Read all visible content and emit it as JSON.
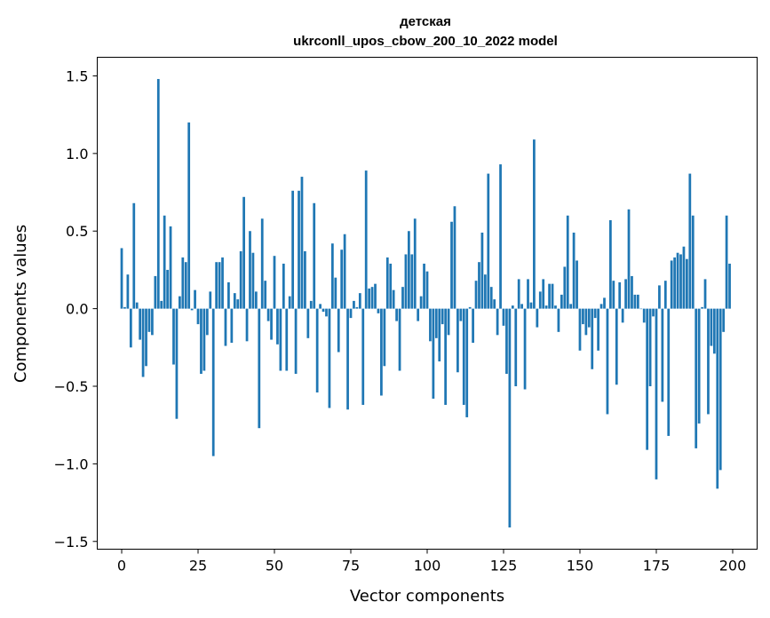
{
  "chart_data": {
    "type": "bar",
    "title_line1": "детская",
    "title_line2": "ukrconll_upos_cbow_200_10_2022 model",
    "xlabel": "Vector components",
    "ylabel": "Components values",
    "xlim": [
      -8,
      208
    ],
    "ylim": [
      -1.55,
      1.62
    ],
    "xticks": [
      0,
      25,
      50,
      75,
      100,
      125,
      150,
      175,
      200
    ],
    "xtick_labels": [
      "0",
      "25",
      "50",
      "75",
      "100",
      "125",
      "150",
      "175",
      "200"
    ],
    "yticks": [
      -1.5,
      -1.0,
      -0.5,
      0.0,
      0.5,
      1.0,
      1.5
    ],
    "ytick_labels": [
      "−1.5",
      "−1.0",
      "−0.5",
      "0.0",
      "0.5",
      "1.0",
      "1.5"
    ],
    "bar_color": "#1f77b4",
    "values": [
      0.39,
      0.01,
      0.22,
      -0.25,
      0.68,
      0.04,
      -0.2,
      -0.44,
      -0.37,
      -0.15,
      -0.17,
      0.21,
      1.48,
      0.05,
      0.6,
      0.25,
      0.53,
      -0.36,
      -0.71,
      0.08,
      0.33,
      0.3,
      1.2,
      -0.01,
      0.12,
      -0.1,
      -0.42,
      -0.4,
      -0.17,
      0.11,
      -0.95,
      0.3,
      0.3,
      0.33,
      -0.24,
      0.17,
      -0.22,
      0.1,
      0.06,
      0.37,
      0.72,
      -0.21,
      0.5,
      0.36,
      0.11,
      -0.77,
      0.58,
      0.18,
      -0.08,
      -0.2,
      0.34,
      -0.23,
      -0.4,
      0.29,
      -0.4,
      0.08,
      0.76,
      -0.42,
      0.76,
      0.85,
      0.37,
      -0.19,
      0.05,
      0.68,
      -0.54,
      0.03,
      -0.02,
      -0.05,
      -0.64,
      0.42,
      0.2,
      -0.28,
      0.38,
      0.48,
      -0.65,
      -0.06,
      0.05,
      0.01,
      0.1,
      -0.62,
      0.89,
      0.13,
      0.14,
      0.16,
      -0.03,
      -0.56,
      -0.37,
      0.33,
      0.29,
      0.12,
      -0.08,
      -0.4,
      0.14,
      0.35,
      0.5,
      0.35,
      0.58,
      -0.08,
      0.08,
      0.29,
      0.24,
      -0.21,
      -0.58,
      -0.19,
      -0.34,
      -0.1,
      -0.62,
      -0.17,
      0.56,
      0.66,
      -0.41,
      -0.08,
      -0.62,
      -0.7,
      0.01,
      -0.22,
      0.18,
      0.3,
      0.49,
      0.22,
      0.87,
      0.14,
      0.06,
      -0.17,
      0.93,
      -0.11,
      -0.42,
      -1.41,
      0.02,
      -0.5,
      0.19,
      0.03,
      -0.52,
      0.19,
      0.04,
      1.09,
      -0.12,
      0.11,
      0.19,
      0.02,
      0.16,
      0.16,
      0.02,
      -0.15,
      0.09,
      0.27,
      0.6,
      0.03,
      0.49,
      0.31,
      -0.27,
      -0.1,
      -0.17,
      -0.12,
      -0.39,
      -0.06,
      -0.27,
      0.03,
      0.07,
      -0.68,
      0.57,
      0.18,
      -0.49,
      0.17,
      -0.09,
      0.19,
      0.64,
      0.21,
      0.09,
      0.09,
      0.0,
      -0.09,
      -0.91,
      -0.5,
      -0.05,
      -1.1,
      0.15,
      -0.6,
      0.18,
      -0.82,
      0.31,
      0.33,
      0.36,
      0.35,
      0.4,
      0.32,
      0.87,
      0.6,
      -0.9,
      -0.74,
      0.01,
      0.19,
      -0.68,
      -0.24,
      -0.29,
      -1.16,
      -1.04,
      -0.15,
      0.6,
      0.29
    ]
  }
}
